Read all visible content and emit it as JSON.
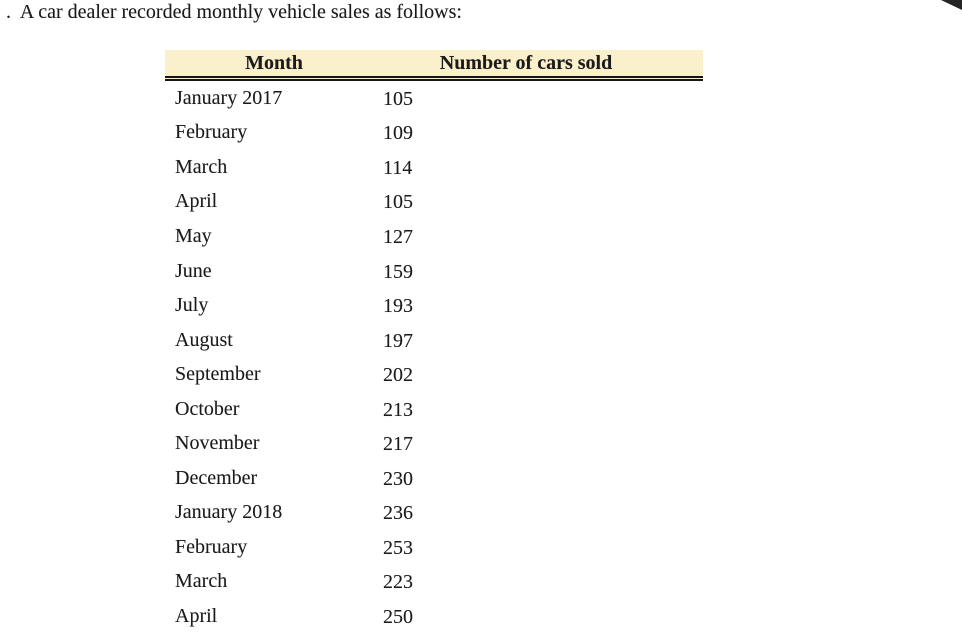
{
  "question": {
    "text": ".  A car dealer recorded monthly vehicle sales as follows:"
  },
  "table": {
    "headers": [
      "Month",
      "Number of cars sold"
    ],
    "rows": [
      {
        "month": "January 2017",
        "value": "105"
      },
      {
        "month": "February",
        "value": "109"
      },
      {
        "month": "March",
        "value": "114"
      },
      {
        "month": "April",
        "value": "105"
      },
      {
        "month": "May",
        "value": "127"
      },
      {
        "month": "June",
        "value": "159"
      },
      {
        "month": "July",
        "value": "193"
      },
      {
        "month": "August",
        "value": "197"
      },
      {
        "month": "September",
        "value": "202"
      },
      {
        "month": "October",
        "value": "213"
      },
      {
        "month": "November",
        "value": "217"
      },
      {
        "month": "December",
        "value": "230"
      },
      {
        "month": "January 2018",
        "value": "236"
      },
      {
        "month": "February",
        "value": "253"
      },
      {
        "month": "March",
        "value": "223"
      },
      {
        "month": "April",
        "value": "250"
      }
    ]
  },
  "colors": {
    "header_background": "#FAF0CB",
    "rule": "#161616",
    "text": "#1b1b1b",
    "corner_fold": "#242424",
    "page_background": "#ffffff"
  }
}
